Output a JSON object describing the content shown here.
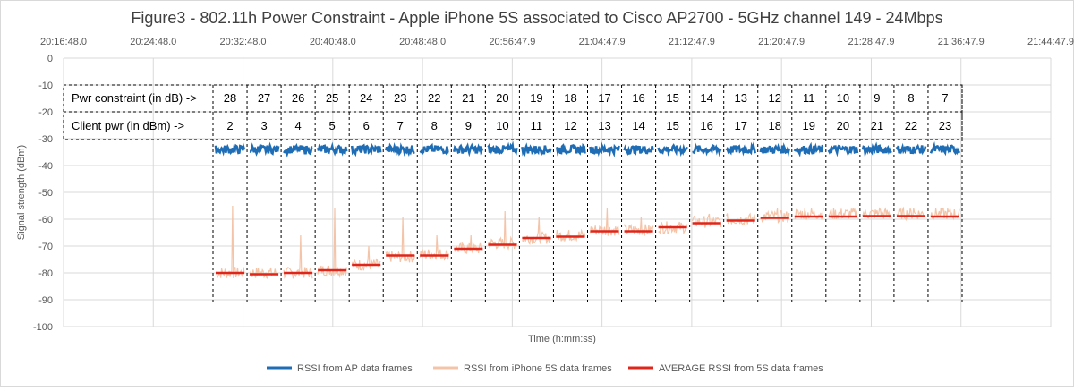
{
  "chart_data": {
    "type": "line",
    "title": "Figure3 - 802.11h Power Constraint - Apple iPhone 5S associated to Cisco AP2700 - 5GHz channel 149 - 24Mbps",
    "xlabel": "Time (h:mm:ss)",
    "ylabel": "Signal strength (dBm)",
    "ylim": [
      -100,
      0
    ],
    "yticks": [
      0,
      -10,
      -20,
      -30,
      -40,
      -50,
      -60,
      -70,
      -80,
      -90,
      -100
    ],
    "xtick_labels": [
      "20:16:48.0",
      "20:24:48.0",
      "20:32:48.0",
      "20:40:48.0",
      "20:48:48.0",
      "20:56:47.9",
      "21:04:47.9",
      "21:12:47.9",
      "21:20:47.9",
      "21:28:47.9",
      "21:36:47.9",
      "21:44:47.9"
    ],
    "x_axis_position": "top",
    "grid": true,
    "legend_position": "bottom",
    "table": {
      "row1_label": "Pwr constraint (in dB)  ->",
      "row2_label": "Client pwr (in dBm)  ->",
      "pwr_constraint": [
        "28",
        "27",
        "26",
        "25",
        "24",
        "23",
        "22",
        "21",
        "20",
        "19",
        "18",
        "17",
        "16",
        "15",
        "14",
        "13",
        "12",
        "11",
        "10",
        "9",
        "8",
        "7"
      ],
      "client_pwr": [
        "2",
        "3",
        "4",
        "5",
        "6",
        "7",
        "8",
        "9",
        "10",
        "11",
        "12",
        "13",
        "14",
        "15",
        "16",
        "17",
        "18",
        "19",
        "20",
        "21",
        "22",
        "23"
      ]
    },
    "series": [
      {
        "name": "RSSI from AP data frames",
        "color": "#1f6db5",
        "values": [
          -34,
          -34,
          -34,
          -34,
          -34,
          -34,
          -34,
          -34,
          -34,
          -34,
          -34,
          -34,
          -34,
          -34,
          -34,
          -34,
          -34,
          -34,
          -34,
          -34,
          -34,
          -34
        ],
        "spread": 1.5
      },
      {
        "name": "RSSI from iPhone 5S data frames",
        "color": "#f4c4a8",
        "values": [
          -80,
          -80,
          -80,
          -79,
          -77,
          -74,
          -73,
          -71,
          -69,
          -67,
          -66,
          -64,
          -64,
          -63,
          -61,
          -60,
          -59,
          -58,
          -58,
          -58,
          -58,
          -58
        ],
        "peaks": [
          -55,
          null,
          -66,
          -56,
          -70,
          -59,
          -66,
          -66,
          -57,
          -59,
          null,
          -56,
          -59,
          null,
          -58,
          null,
          -56,
          -56,
          null,
          -56,
          -56,
          -56
        ]
      },
      {
        "name": "AVERAGE RSSI from 5S data frames",
        "color": "#e0261b",
        "values": [
          -80,
          -80.5,
          -80,
          -79,
          -77,
          -73.5,
          -73.5,
          -71,
          -69.5,
          -67,
          -66.5,
          -64.5,
          -64.5,
          -63,
          -61.5,
          -60.5,
          -59.5,
          -59,
          -59,
          -58.8,
          -58.8,
          -59
        ]
      }
    ]
  }
}
